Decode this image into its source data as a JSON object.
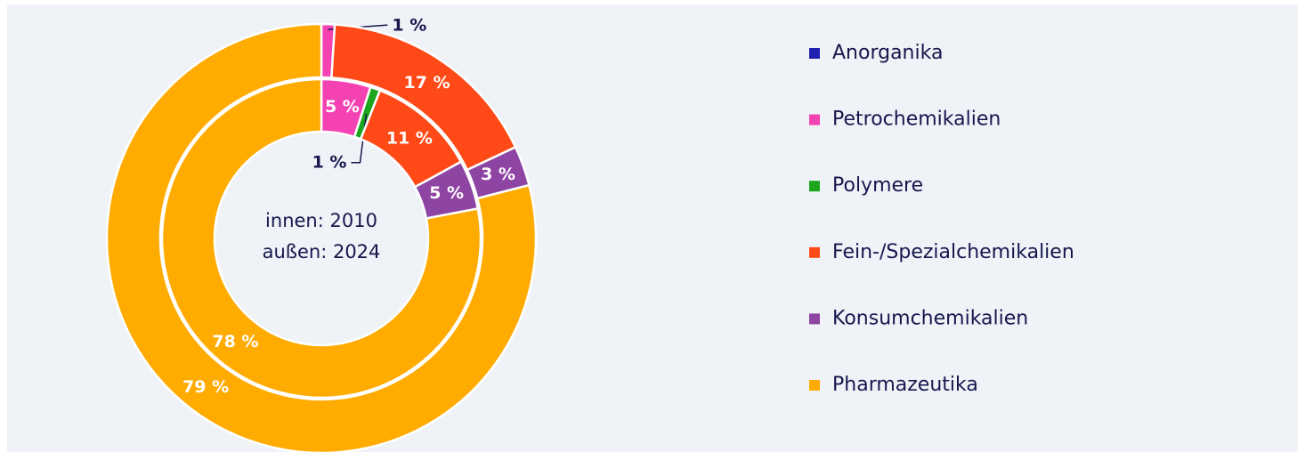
{
  "chart_data": {
    "type": "nested-donut",
    "center_text": [
      "innen: 2010",
      "außen: 2024"
    ],
    "series": [
      {
        "name": "Anorganika",
        "color": "#1f1fb0",
        "values": [
          0,
          0
        ],
        "value_labels": [
          null,
          null
        ]
      },
      {
        "name": "Petrochemikalien",
        "color": "#f542b3",
        "values": [
          5,
          1
        ],
        "value_labels": [
          "5 %",
          "1 %"
        ]
      },
      {
        "name": "Polymere",
        "color": "#1ea51e",
        "values": [
          1,
          0
        ],
        "value_labels": [
          "1 %",
          null
        ]
      },
      {
        "name": "Fein-/Spezialchemikalien",
        "color": "#ff4a17",
        "values": [
          11,
          17
        ],
        "value_labels": [
          "11 %",
          "17 %"
        ]
      },
      {
        "name": "Konsumchemikalien",
        "color": "#8e44a3",
        "values": [
          5,
          3
        ],
        "value_labels": [
          "5 %",
          "3 %"
        ]
      },
      {
        "name": "Pharmazeutika",
        "color": "#ffab00",
        "values": [
          78,
          79
        ],
        "value_labels": [
          "78 %",
          "79 %"
        ]
      }
    ],
    "legend": "right"
  }
}
